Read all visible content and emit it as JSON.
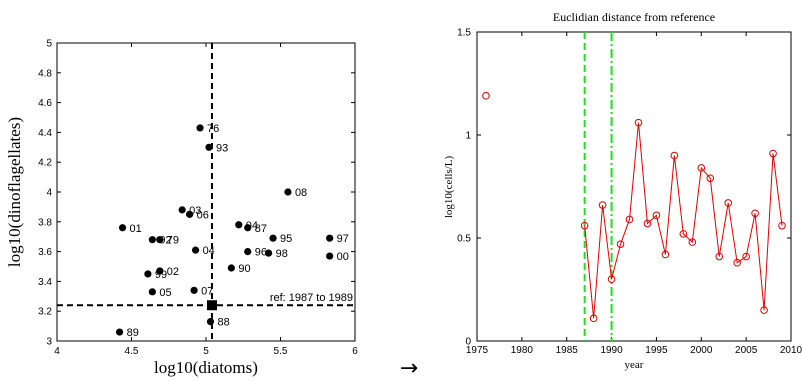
{
  "arrow": "→",
  "chart_data": [
    {
      "type": "scatter",
      "xlabel": "log10(diatoms)",
      "ylabel": "log10(dinoflagellates)",
      "xlim": [
        4,
        6
      ],
      "ylim": [
        3,
        5
      ],
      "xticks": [
        "4",
        "4.5",
        "5",
        "5.5",
        "6"
      ],
      "yticks": [
        "3",
        "3.2",
        "3.4",
        "3.6",
        "3.8",
        "4",
        "4.2",
        "4.4",
        "4.6",
        "4.8",
        "5"
      ],
      "reference": {
        "x": 5.04,
        "y": 3.24,
        "label": "ref: 1987 to 1989"
      },
      "points": [
        {
          "label": "76",
          "x": 4.96,
          "y": 4.43
        },
        {
          "label": "93",
          "x": 5.02,
          "y": 4.3
        },
        {
          "label": "08",
          "x": 5.55,
          "y": 4.0
        },
        {
          "label": "03",
          "x": 4.84,
          "y": 3.88
        },
        {
          "label": "06",
          "x": 4.89,
          "y": 3.85
        },
        {
          "label": "01",
          "x": 4.44,
          "y": 3.76
        },
        {
          "label": "04",
          "x": 5.22,
          "y": 3.78
        },
        {
          "label": "87",
          "x": 5.28,
          "y": 3.76
        },
        {
          "label": "97",
          "x": 5.83,
          "y": 3.69
        },
        {
          "label": "95",
          "x": 5.45,
          "y": 3.69
        },
        {
          "label": "92",
          "x": 4.64,
          "y": 3.68
        },
        {
          "label": "79",
          "x": 4.69,
          "y": 3.68
        },
        {
          "label": "04",
          "x": 4.93,
          "y": 3.61
        },
        {
          "label": "96",
          "x": 5.28,
          "y": 3.6
        },
        {
          "label": "98",
          "x": 5.42,
          "y": 3.59
        },
        {
          "label": "00",
          "x": 5.83,
          "y": 3.57
        },
        {
          "label": "90",
          "x": 5.17,
          "y": 3.49
        },
        {
          "label": "02",
          "x": 4.69,
          "y": 3.47
        },
        {
          "label": "99",
          "x": 4.61,
          "y": 3.45
        },
        {
          "label": "07",
          "x": 4.92,
          "y": 3.34
        },
        {
          "label": "05",
          "x": 4.64,
          "y": 3.33
        },
        {
          "label": "88",
          "x": 5.03,
          "y": 3.13
        },
        {
          "label": "89",
          "x": 4.42,
          "y": 3.06
        }
      ]
    },
    {
      "type": "line",
      "title": "Euclidian distance from reference",
      "xlabel": "year",
      "ylabel": "log10(cells/L)",
      "xlim": [
        1975,
        2010
      ],
      "ylim": [
        0,
        1.5
      ],
      "xticks": [
        "1975",
        "1980",
        "1985",
        "1990",
        "1995",
        "2000",
        "2005",
        "2010"
      ],
      "yticks": [
        "0",
        "0.5",
        "1",
        "1.5"
      ],
      "reference_lines": [
        1987,
        1990
      ],
      "series": [
        {
          "x": [
            1976,
            1987,
            1988,
            1989,
            1990,
            1991,
            1992,
            1993,
            1994,
            1995,
            1996,
            1997,
            1998,
            1999,
            2000,
            2001,
            2002,
            2003,
            2004,
            2005,
            2006,
            2007,
            2008,
            2009
          ],
          "y": [
            1.19,
            0.56,
            0.11,
            0.66,
            0.3,
            0.47,
            0.59,
            1.06,
            0.57,
            0.61,
            0.42,
            0.9,
            0.52,
            0.48,
            0.84,
            0.79,
            0.41,
            0.67,
            0.38,
            0.41,
            0.62,
            0.15,
            0.91,
            0.56
          ]
        }
      ]
    }
  ]
}
